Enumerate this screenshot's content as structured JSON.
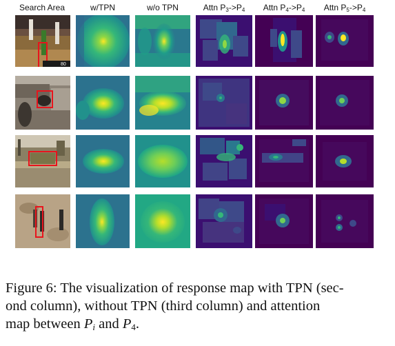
{
  "figure": {
    "headers": {
      "search_area": "Search Area",
      "w_tpn": "w/TPN",
      "wo_tpn": "w/o TPN",
      "attn_p3": {
        "pre": "Attn P",
        "sub1": "3",
        "mid": "->P",
        "sub2": "4"
      },
      "attn_p4": {
        "pre": "Attn P",
        "sub1": "4",
        "mid": "->P",
        "sub2": "4"
      },
      "attn_p5": {
        "pre": "Attn P",
        "sub1": "5",
        "mid": "->P",
        "sub2": "4"
      }
    },
    "colors": {
      "viridis_dark": "#440154",
      "viridis_blue": "#31688e",
      "viridis_green": "#35b779",
      "viridis_yellow": "#fde725",
      "bbox_red": "#e8141c"
    },
    "scoreboard_text": "80",
    "rows": [
      {
        "scene": "basketball"
      },
      {
        "scene": "rubble"
      },
      {
        "scene": "street-car"
      },
      {
        "scene": "sand-walkers"
      }
    ]
  },
  "caption": {
    "line1": "Figure 6: The visualization of response map with TPN (sec-",
    "line2": "ond column), without TPN (third column) and attention",
    "line3_pre": "map between ",
    "p": "P",
    "i": "i",
    "and": " and ",
    "p4": "P",
    "four": "4",
    "period": "."
  }
}
